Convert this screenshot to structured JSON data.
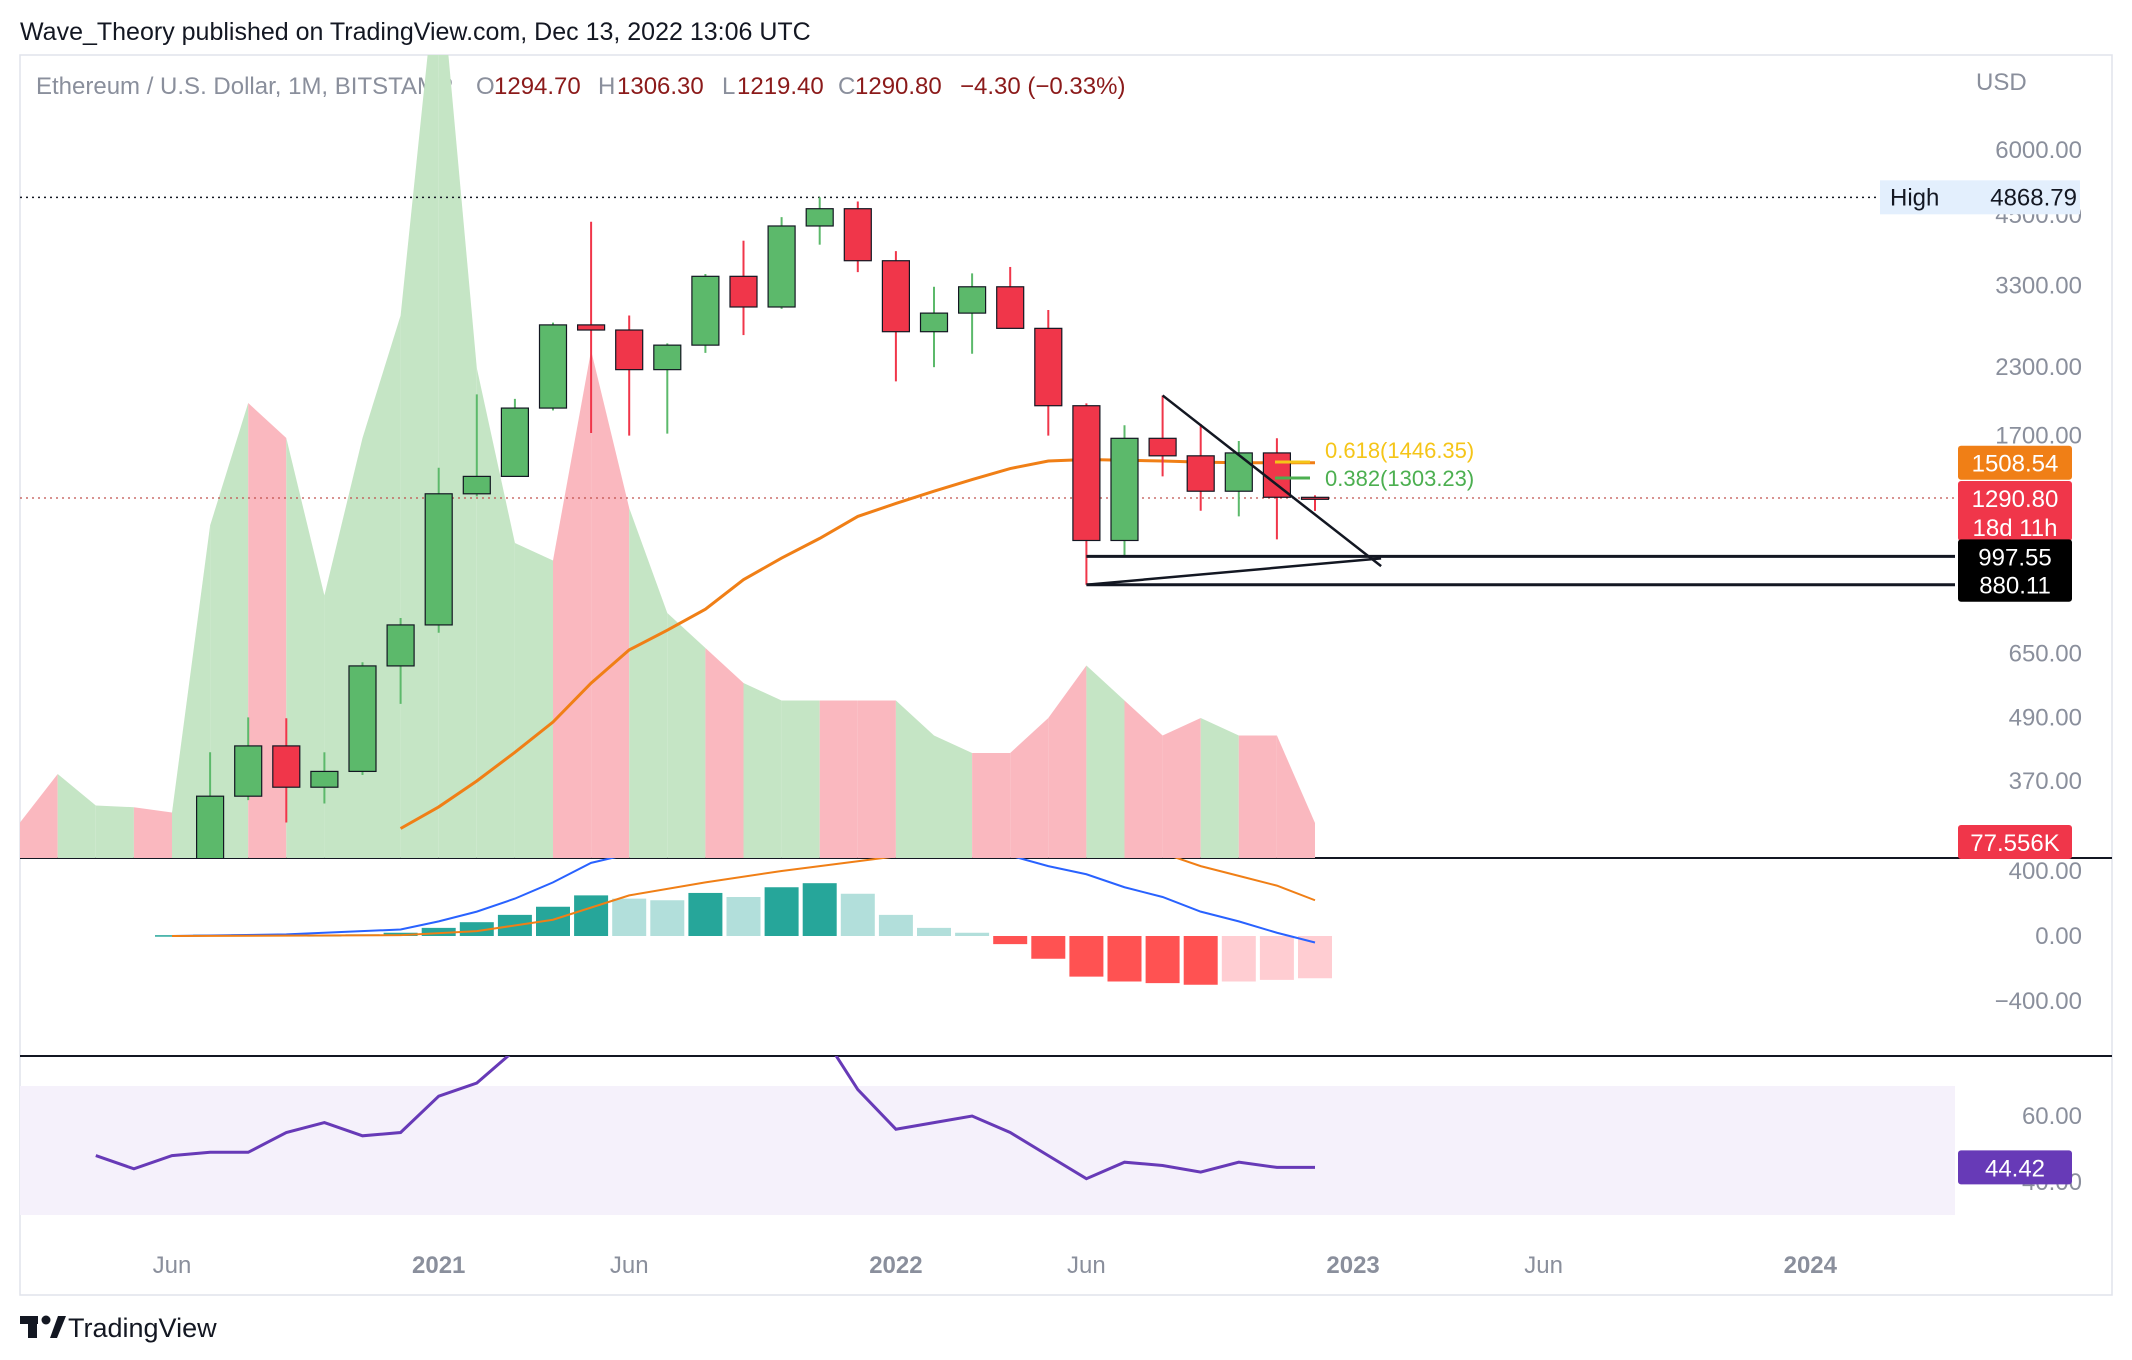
{
  "header": {
    "published": "Wave_Theory published on TradingView.com, Dec 13, 2022 13:06 UTC"
  },
  "legend": {
    "symbol": "Ethereum / U.S. Dollar, 1M, BITSTAMP",
    "o_label": "O",
    "o_value": "1294.70",
    "h_label": "H",
    "h_value": "1306.30",
    "l_label": "L",
    "l_value": "1219.40",
    "c_label": "C",
    "c_value": "1290.80",
    "change": "−4.30 (−0.33%)"
  },
  "footer": {
    "brand": "TradingView"
  },
  "colors": {
    "up": "#5cb96b",
    "down": "#f0364a",
    "ma": "#f07f16",
    "macd": "#2962ff",
    "signal": "#f07f16",
    "rsi": "#673ab7",
    "volume_up": "#c5e5c5",
    "volume_down": "#fab8bf",
    "hist_dark_up": "#26a69a",
    "hist_light_up": "#b2dfdb",
    "hist_dark_down": "#ff5252",
    "hist_light_down": "#ffcdd2"
  },
  "chart_data": [
    {
      "type": "candlestick",
      "title": "Ethereum / U.S. Dollar, 1M, BITSTAMP",
      "ylabel": "USD",
      "yscale": "log",
      "ylim": [
        300,
        6200
      ],
      "y_ticks": [
        "6000.00",
        "4500.00",
        "3300.00",
        "2300.00",
        "1700.00",
        "650.00",
        "490.00",
        "370.00"
      ],
      "x_ticks": [
        "Jun",
        "2021",
        "Jun",
        "2022",
        "Jun",
        "2023",
        "Jun",
        "2024"
      ],
      "x_tick_months": [
        "2020-06",
        "2021-01",
        "2021-06",
        "2022-01",
        "2022-06",
        "2023-01",
        "2023-06",
        "2024-01"
      ],
      "candles": [
        {
          "month": "2020-07",
          "o": 230,
          "h": 420,
          "l": 225,
          "c": 346,
          "volume": 190
        },
        {
          "month": "2020-08",
          "o": 346,
          "h": 490,
          "l": 340,
          "c": 432,
          "volume": 260
        },
        {
          "month": "2020-09",
          "o": 432,
          "h": 488,
          "l": 308,
          "c": 360,
          "volume": 240
        },
        {
          "month": "2020-10",
          "o": 360,
          "h": 420,
          "l": 335,
          "c": 386,
          "volume": 150
        },
        {
          "month": "2020-11",
          "o": 386,
          "h": 625,
          "l": 380,
          "c": 615,
          "volume": 240
        },
        {
          "month": "2020-12",
          "o": 615,
          "h": 760,
          "l": 520,
          "c": 737,
          "volume": 310
        },
        {
          "month": "2021-01",
          "o": 737,
          "h": 1475,
          "l": 712,
          "c": 1315,
          "volume": 520
        },
        {
          "month": "2021-02",
          "o": 1315,
          "h": 2040,
          "l": 1300,
          "c": 1420,
          "volume": 280
        },
        {
          "month": "2021-03",
          "o": 1420,
          "h": 2000,
          "l": 1420,
          "c": 1920,
          "volume": 180
        },
        {
          "month": "2021-04",
          "o": 1920,
          "h": 2800,
          "l": 1900,
          "c": 2772,
          "volume": 170
        },
        {
          "month": "2021-05",
          "o": 2772,
          "h": 4370,
          "l": 1720,
          "c": 2710,
          "volume": 290
        },
        {
          "month": "2021-06",
          "o": 2710,
          "h": 2890,
          "l": 1700,
          "c": 2275,
          "volume": 200
        },
        {
          "month": "2021-07",
          "o": 2275,
          "h": 2555,
          "l": 1715,
          "c": 2535,
          "volume": 140
        },
        {
          "month": "2021-08",
          "o": 2535,
          "h": 3470,
          "l": 2450,
          "c": 3435,
          "volume": 120
        },
        {
          "month": "2021-09",
          "o": 3435,
          "h": 4020,
          "l": 2650,
          "c": 3000,
          "volume": 100
        },
        {
          "month": "2021-10",
          "o": 3000,
          "h": 4460,
          "l": 2975,
          "c": 4290,
          "volume": 90
        },
        {
          "month": "2021-11",
          "o": 4290,
          "h": 4868.79,
          "l": 3950,
          "c": 4630,
          "volume": 90
        },
        {
          "month": "2021-12",
          "o": 4630,
          "h": 4780,
          "l": 3500,
          "c": 3680,
          "volume": 90
        },
        {
          "month": "2022-01",
          "o": 3680,
          "h": 3840,
          "l": 2160,
          "c": 2690,
          "volume": 90
        },
        {
          "month": "2022-02",
          "o": 2690,
          "h": 3280,
          "l": 2300,
          "c": 2920,
          "volume": 70
        },
        {
          "month": "2022-03",
          "o": 2920,
          "h": 3480,
          "l": 2440,
          "c": 3280,
          "volume": 60
        },
        {
          "month": "2022-04",
          "o": 3280,
          "h": 3580,
          "l": 2760,
          "c": 2730,
          "volume": 60
        },
        {
          "month": "2022-05",
          "o": 2730,
          "h": 2960,
          "l": 1700,
          "c": 1940,
          "volume": 80
        },
        {
          "month": "2022-06",
          "o": 1940,
          "h": 1960,
          "l": 880.11,
          "c": 1070,
          "volume": 110
        },
        {
          "month": "2022-07",
          "o": 1070,
          "h": 1780,
          "l": 997.55,
          "c": 1680,
          "volume": 90
        },
        {
          "month": "2022-08",
          "o": 1680,
          "h": 2030,
          "l": 1420,
          "c": 1555,
          "volume": 70
        },
        {
          "month": "2022-09",
          "o": 1555,
          "h": 1790,
          "l": 1220,
          "c": 1330,
          "volume": 80
        },
        {
          "month": "2022-10",
          "o": 1330,
          "h": 1660,
          "l": 1190,
          "c": 1575,
          "volume": 70
        },
        {
          "month": "2022-11",
          "o": 1575,
          "h": 1680,
          "l": 1075,
          "c": 1295,
          "volume": 70
        },
        {
          "month": "2022-12",
          "o": 1294.7,
          "h": 1306.3,
          "l": 1219.4,
          "c": 1290.8,
          "volume": 20
        }
      ],
      "moving_average": {
        "color": "#f07f16",
        "value": "1508.54",
        "points": [
          {
            "month": "2020-12",
            "value": 300
          },
          {
            "month": "2021-01",
            "value": 330
          },
          {
            "month": "2021-02",
            "value": 370
          },
          {
            "month": "2021-03",
            "value": 420
          },
          {
            "month": "2021-04",
            "value": 480
          },
          {
            "month": "2021-05",
            "value": 570
          },
          {
            "month": "2021-06",
            "value": 660
          },
          {
            "month": "2021-07",
            "value": 720
          },
          {
            "month": "2021-08",
            "value": 790
          },
          {
            "month": "2021-09",
            "value": 900
          },
          {
            "month": "2021-10",
            "value": 990
          },
          {
            "month": "2021-11",
            "value": 1080
          },
          {
            "month": "2021-12",
            "value": 1190
          },
          {
            "month": "2022-01",
            "value": 1260
          },
          {
            "month": "2022-02",
            "value": 1330
          },
          {
            "month": "2022-03",
            "value": 1400
          },
          {
            "month": "2022-04",
            "value": 1470
          },
          {
            "month": "2022-05",
            "value": 1520
          },
          {
            "month": "2022-06",
            "value": 1530
          },
          {
            "month": "2022-07",
            "value": 1525
          },
          {
            "month": "2022-08",
            "value": 1520
          },
          {
            "month": "2022-09",
            "value": 1512
          },
          {
            "month": "2022-10",
            "value": 1508
          },
          {
            "month": "2022-11",
            "value": 1508
          },
          {
            "month": "2022-12",
            "value": 1508.54
          }
        ]
      },
      "fibonacci": [
        {
          "label": "0.618(1446.35)",
          "value": 1446.35,
          "color": "#f5c518"
        },
        {
          "label": "0.382(1303.23)",
          "value": 1303.23,
          "color": "#4caf50"
        }
      ],
      "triangle": {
        "upper": [
          {
            "month": "2022-08",
            "value": 2030
          },
          {
            "month": "2023-01",
            "value": 1360
          }
        ],
        "lower": [
          {
            "month": "2022-06",
            "value": 880.11
          },
          {
            "month": "2023-01",
            "value": 1180
          }
        ]
      },
      "support_levels": [
        {
          "value": 997.55,
          "label": "997.55",
          "from": "2022-06"
        },
        {
          "value": 880.11,
          "label": "880.11",
          "from": "2022-06"
        }
      ],
      "badges": {
        "high_label": "High",
        "high_value": "4868.79",
        "ma_value": "1508.54",
        "price_value": "1290.80",
        "countdown": "18d 11h",
        "volume_value": "77.556K",
        "rsi_value": "44.42"
      }
    },
    {
      "type": "bar",
      "title": "MACD",
      "ylim": [
        -600,
        400
      ],
      "y_ticks": [
        "400.00",
        "0.00",
        "−400.00"
      ],
      "histogram": [
        {
          "month": "2020-06",
          "value": 5
        },
        {
          "month": "2020-07",
          "value": 8
        },
        {
          "month": "2020-08",
          "value": 10
        },
        {
          "month": "2020-09",
          "value": 6
        },
        {
          "month": "2020-10",
          "value": 5
        },
        {
          "month": "2020-11",
          "value": 10
        },
        {
          "month": "2020-12",
          "value": 20
        },
        {
          "month": "2021-01",
          "value": 50
        },
        {
          "month": "2021-02",
          "value": 85
        },
        {
          "month": "2021-03",
          "value": 130
        },
        {
          "month": "2021-04",
          "value": 180
        },
        {
          "month": "2021-05",
          "value": 250
        },
        {
          "month": "2021-06",
          "value": 230
        },
        {
          "month": "2021-07",
          "value": 220
        },
        {
          "month": "2021-08",
          "value": 265
        },
        {
          "month": "2021-09",
          "value": 240
        },
        {
          "month": "2021-10",
          "value": 300
        },
        {
          "month": "2021-11",
          "value": 325
        },
        {
          "month": "2021-12",
          "value": 260
        },
        {
          "month": "2022-01",
          "value": 130
        },
        {
          "month": "2022-02",
          "value": 50
        },
        {
          "month": "2022-03",
          "value": 20
        },
        {
          "month": "2022-04",
          "value": -50
        },
        {
          "month": "2022-05",
          "value": -140
        },
        {
          "month": "2022-06",
          "value": -250
        },
        {
          "month": "2022-07",
          "value": -280
        },
        {
          "month": "2022-08",
          "value": -290
        },
        {
          "month": "2022-09",
          "value": -300
        },
        {
          "month": "2022-10",
          "value": -280
        },
        {
          "month": "2022-11",
          "value": -270
        },
        {
          "month": "2022-12",
          "value": -260
        }
      ],
      "macd_line": [
        {
          "month": "2020-06",
          "value": 0
        },
        {
          "month": "2020-09",
          "value": 10
        },
        {
          "month": "2020-12",
          "value": 40
        },
        {
          "month": "2021-01",
          "value": 90
        },
        {
          "month": "2021-02",
          "value": 150
        },
        {
          "month": "2021-03",
          "value": 230
        },
        {
          "month": "2021-04",
          "value": 330
        },
        {
          "month": "2021-05",
          "value": 450
        },
        {
          "month": "2021-07",
          "value": 560
        },
        {
          "month": "2021-09",
          "value": 650
        },
        {
          "month": "2021-12",
          "value": 700
        },
        {
          "month": "2022-03",
          "value": 560
        },
        {
          "month": "2022-05",
          "value": 430
        },
        {
          "month": "2022-06",
          "value": 380
        },
        {
          "month": "2022-07",
          "value": 300
        },
        {
          "month": "2022-08",
          "value": 240
        },
        {
          "month": "2022-09",
          "value": 150
        },
        {
          "month": "2022-10",
          "value": 90
        },
        {
          "month": "2022-11",
          "value": 20
        },
        {
          "month": "2022-12",
          "value": -40
        }
      ],
      "signal_line": [
        {
          "month": "2020-06",
          "value": 0
        },
        {
          "month": "2020-12",
          "value": 5
        },
        {
          "month": "2021-02",
          "value": 30
        },
        {
          "month": "2021-04",
          "value": 100
        },
        {
          "month": "2021-06",
          "value": 250
        },
        {
          "month": "2021-08",
          "value": 330
        },
        {
          "month": "2021-10",
          "value": 400
        },
        {
          "month": "2021-12",
          "value": 460
        },
        {
          "month": "2022-02",
          "value": 520
        },
        {
          "month": "2022-04",
          "value": 560
        },
        {
          "month": "2022-06",
          "value": 570
        },
        {
          "month": "2022-08",
          "value": 510
        },
        {
          "month": "2022-09",
          "value": 430
        },
        {
          "month": "2022-10",
          "value": 370
        },
        {
          "month": "2022-11",
          "value": 310
        },
        {
          "month": "2022-12",
          "value": 220
        }
      ]
    },
    {
      "type": "line",
      "title": "RSI",
      "ylim": [
        30,
        90
      ],
      "y_ticks": [
        "60.00",
        "40.00"
      ],
      "band": [
        30,
        70
      ],
      "points": [
        {
          "month": "2020-04",
          "value": 48
        },
        {
          "month": "2020-05",
          "value": 44
        },
        {
          "month": "2020-06",
          "value": 48
        },
        {
          "month": "2020-07",
          "value": 49
        },
        {
          "month": "2020-08",
          "value": 49
        },
        {
          "month": "2020-09",
          "value": 55
        },
        {
          "month": "2020-10",
          "value": 58
        },
        {
          "month": "2020-11",
          "value": 54
        },
        {
          "month": "2020-12",
          "value": 55
        },
        {
          "month": "2021-01",
          "value": 66
        },
        {
          "month": "2021-02",
          "value": 70
        },
        {
          "month": "2021-03",
          "value": 80
        },
        {
          "month": "2021-04",
          "value": 87
        },
        {
          "month": "2021-05",
          "value": 91
        },
        {
          "month": "2021-06",
          "value": 80
        },
        {
          "month": "2021-07",
          "value": 82
        },
        {
          "month": "2021-08",
          "value": 88
        },
        {
          "month": "2021-09",
          "value": 80
        },
        {
          "month": "2021-10",
          "value": 88
        },
        {
          "month": "2021-11",
          "value": 86
        },
        {
          "month": "2021-12",
          "value": 68
        },
        {
          "month": "2022-01",
          "value": 56
        },
        {
          "month": "2022-02",
          "value": 58
        },
        {
          "month": "2022-03",
          "value": 60
        },
        {
          "month": "2022-04",
          "value": 55
        },
        {
          "month": "2022-05",
          "value": 48
        },
        {
          "month": "2022-06",
          "value": 41
        },
        {
          "month": "2022-07",
          "value": 46
        },
        {
          "month": "2022-08",
          "value": 45
        },
        {
          "month": "2022-09",
          "value": 43
        },
        {
          "month": "2022-10",
          "value": 46
        },
        {
          "month": "2022-11",
          "value": 44.42
        },
        {
          "month": "2022-12",
          "value": 44.42
        }
      ]
    }
  ]
}
